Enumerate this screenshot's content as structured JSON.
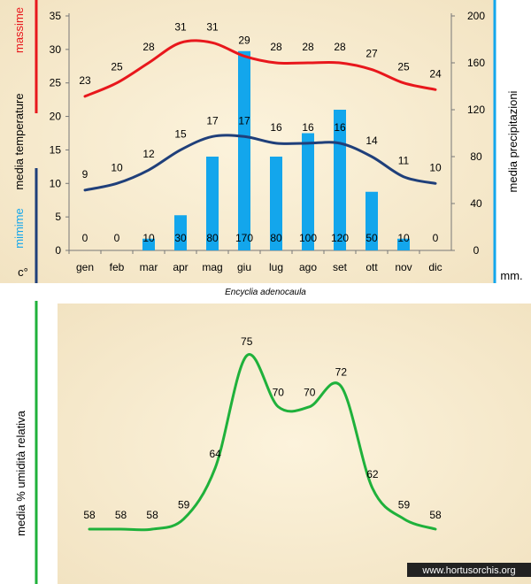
{
  "chart_data": [
    {
      "type": "line+bar",
      "caption": "Encyclia adenocaula",
      "categories": [
        "gen",
        "feb",
        "mar",
        "apr",
        "mag",
        "giu",
        "lug",
        "ago",
        "set",
        "ott",
        "nov",
        "dic"
      ],
      "left_axis": {
        "title_parts": [
          "c°",
          "mimime",
          "media temperature",
          "massime"
        ],
        "ylim": [
          0,
          35
        ],
        "ticks": [
          "0",
          "5",
          "10",
          "15",
          "20",
          "25",
          "30",
          "35"
        ]
      },
      "right_axis": {
        "title_parts": [
          "mm.",
          "media precipitazioni"
        ],
        "ylim": [
          0,
          200
        ],
        "ticks": [
          "0",
          "40",
          "80",
          "120",
          "160",
          "200"
        ]
      },
      "series": [
        {
          "name": "massime",
          "kind": "line",
          "axis": "left",
          "color": "#e8171c",
          "values": [
            23,
            25,
            28,
            31,
            31,
            29,
            28,
            28,
            28,
            27,
            25,
            24
          ]
        },
        {
          "name": "mimime",
          "kind": "line",
          "axis": "left",
          "color": "#1f3f7a",
          "values": [
            9,
            10,
            12,
            15,
            17,
            17,
            16,
            16,
            16,
            14,
            11,
            10
          ]
        },
        {
          "name": "media precipitazioni",
          "kind": "bar",
          "axis": "right",
          "color": "#13a6ec",
          "values": [
            0,
            0,
            10,
            30,
            80,
            170,
            80,
            100,
            120,
            50,
            10,
            0
          ]
        }
      ]
    },
    {
      "type": "line",
      "axis_title": "media % umidità relativa",
      "color": "#1fb13b",
      "values": [
        58,
        58,
        58,
        59,
        64,
        75,
        70,
        70,
        72,
        62,
        59,
        58
      ]
    }
  ],
  "watermark": "www.hortusorchis.org"
}
